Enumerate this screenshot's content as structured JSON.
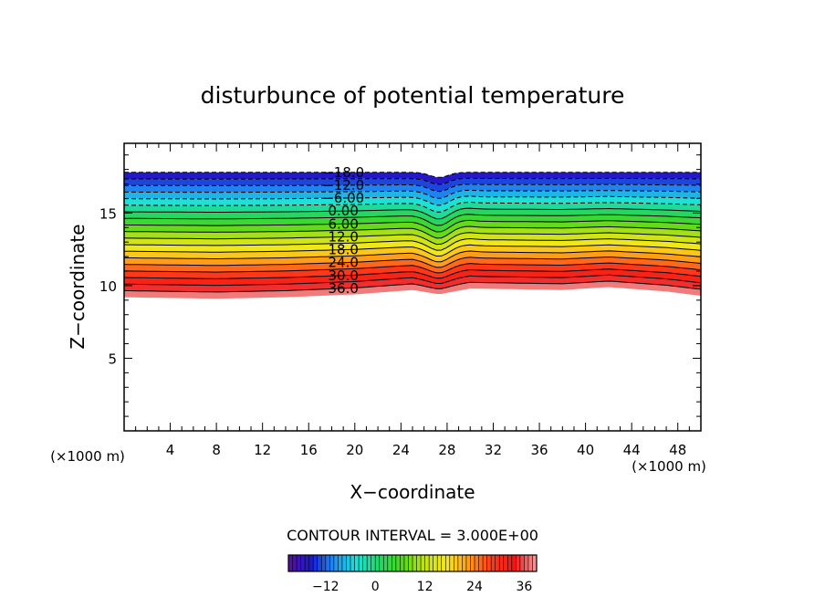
{
  "chart_data": {
    "type": "contour",
    "title": "disturbunce of potential temperature",
    "xlabel": "X−coordinate",
    "ylabel": "Z−coordinate",
    "x_unit_left": "(×1000 m)",
    "x_unit_right": "(×1000 m)",
    "xlim": [
      0,
      50
    ],
    "ylim": [
      0,
      19.8
    ],
    "x_ticks": [
      4,
      8,
      12,
      16,
      20,
      24,
      28,
      32,
      36,
      40,
      44,
      48
    ],
    "y_ticks": [
      5,
      10,
      15
    ],
    "x_tick_labels": [
      "4",
      "8",
      "12",
      "16",
      "20",
      "24",
      "28",
      "32",
      "36",
      "40",
      "44",
      "48"
    ],
    "y_tick_labels": [
      "5",
      "10",
      "15"
    ],
    "contour_interval_text": "CONTOUR INTERVAL = 3.000E+00",
    "contour_interval": 3,
    "contour_range": [
      -18,
      39
    ],
    "upper_boundary_z": 17.8,
    "lower_boundary_z": [
      {
        "x": 0,
        "z": 9.2
      },
      {
        "x": 8,
        "z": 9.1
      },
      {
        "x": 14,
        "z": 9.2
      },
      {
        "x": 20,
        "z": 9.4
      },
      {
        "x": 25,
        "z": 9.7
      },
      {
        "x": 27.3,
        "z": 9.4
      },
      {
        "x": 30,
        "z": 9.8
      },
      {
        "x": 38,
        "z": 9.7
      },
      {
        "x": 42,
        "z": 9.9
      },
      {
        "x": 47,
        "z": 9.6
      },
      {
        "x": 50,
        "z": 9.3
      }
    ],
    "contour_labels": [
      {
        "text": "−18.0",
        "value": -18
      },
      {
        "text": "−12.0",
        "value": -12
      },
      {
        "text": "−6.00",
        "value": -6
      },
      {
        "text": "0.00",
        "value": 0
      },
      {
        "text": "6.00",
        "value": 6
      },
      {
        "text": "12.0",
        "value": 12
      },
      {
        "text": "18.0",
        "value": 18
      },
      {
        "text": "24.0",
        "value": 24
      },
      {
        "text": "30.0",
        "value": 30
      },
      {
        "text": "36.0",
        "value": 36
      }
    ],
    "colorbar": {
      "min": -21,
      "max": 39,
      "ticks": [
        -12,
        0,
        12,
        24,
        36
      ],
      "tick_labels": [
        "−12",
        "0",
        "12",
        "24",
        "36"
      ],
      "colormap": "rainbow (purple → blue → cyan → green → yellow → orange → red → pink)"
    },
    "colors": {
      "stops": [
        "#5a0f9a",
        "#1a1ad0",
        "#1f8cf2",
        "#1ee0d8",
        "#22d66a",
        "#49d81a",
        "#bfe21a",
        "#f7e81a",
        "#ff9a1a",
        "#ff3a1a",
        "#f21515",
        "#f0a0a0"
      ]
    }
  }
}
